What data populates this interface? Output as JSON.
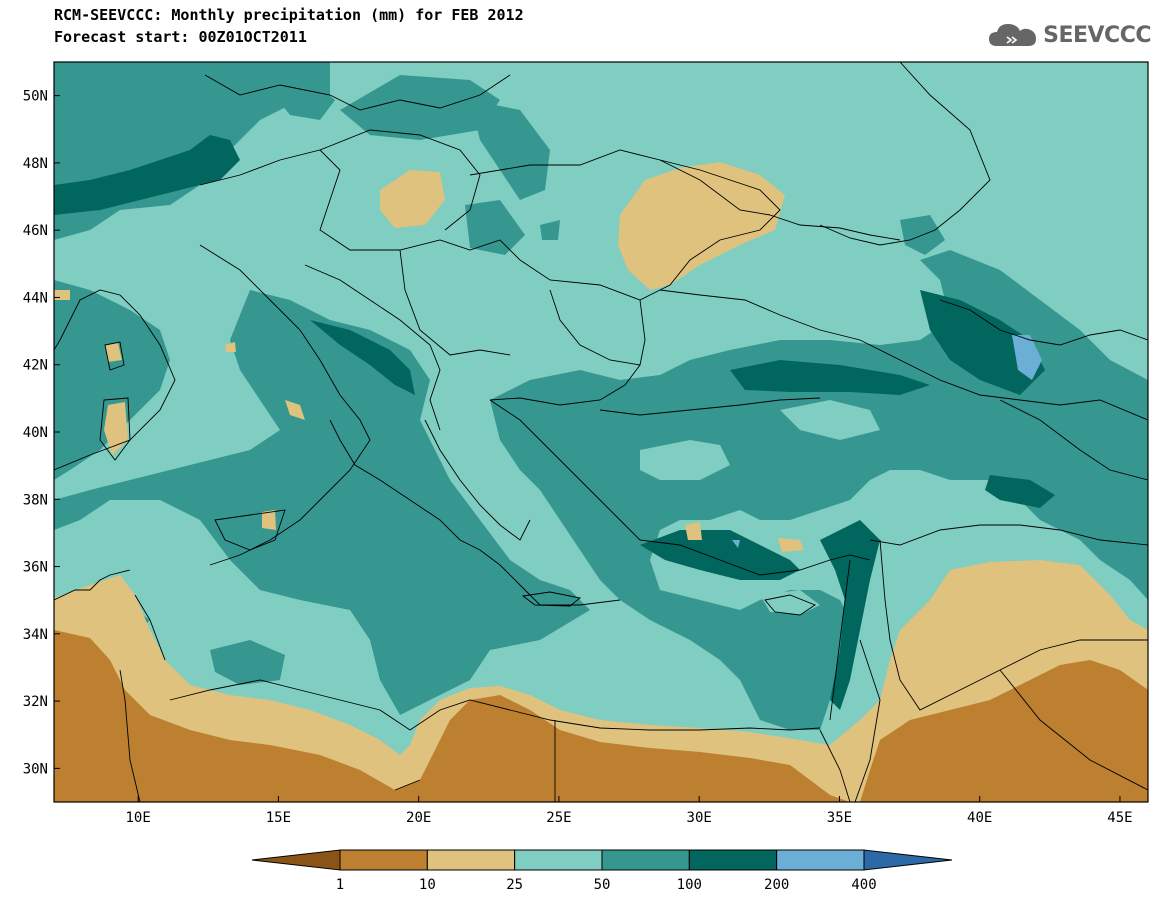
{
  "title_line1": "RCM-SEEVCCC: Monthly precipitation (mm) for FEB 2012",
  "title_line2": "Forecast start: 00Z01OCT2011",
  "logo_text": "SEEVCCC",
  "map": {
    "lon_range": [
      7,
      46
    ],
    "lat_range": [
      29,
      51
    ],
    "x_ticks": [
      "10E",
      "15E",
      "20E",
      "25E",
      "30E",
      "35E",
      "40E",
      "45E"
    ],
    "x_tick_values": [
      10,
      15,
      20,
      25,
      30,
      35,
      40,
      45
    ],
    "y_ticks": [
      "50N",
      "48N",
      "46N",
      "44N",
      "42N",
      "40N",
      "38N",
      "36N",
      "34N",
      "32N",
      "30N"
    ],
    "y_tick_values": [
      50,
      48,
      46,
      44,
      42,
      40,
      38,
      36,
      34,
      32,
      30
    ]
  },
  "colorbar": {
    "labels": [
      "1",
      "10",
      "25",
      "50",
      "100",
      "200",
      "400"
    ],
    "colors": [
      "#8a5418",
      "#bd7f30",
      "#dfc27d",
      "#80cdc1",
      "#35978f",
      "#01665e",
      "#6baed6",
      "#2b6aa6"
    ]
  }
}
